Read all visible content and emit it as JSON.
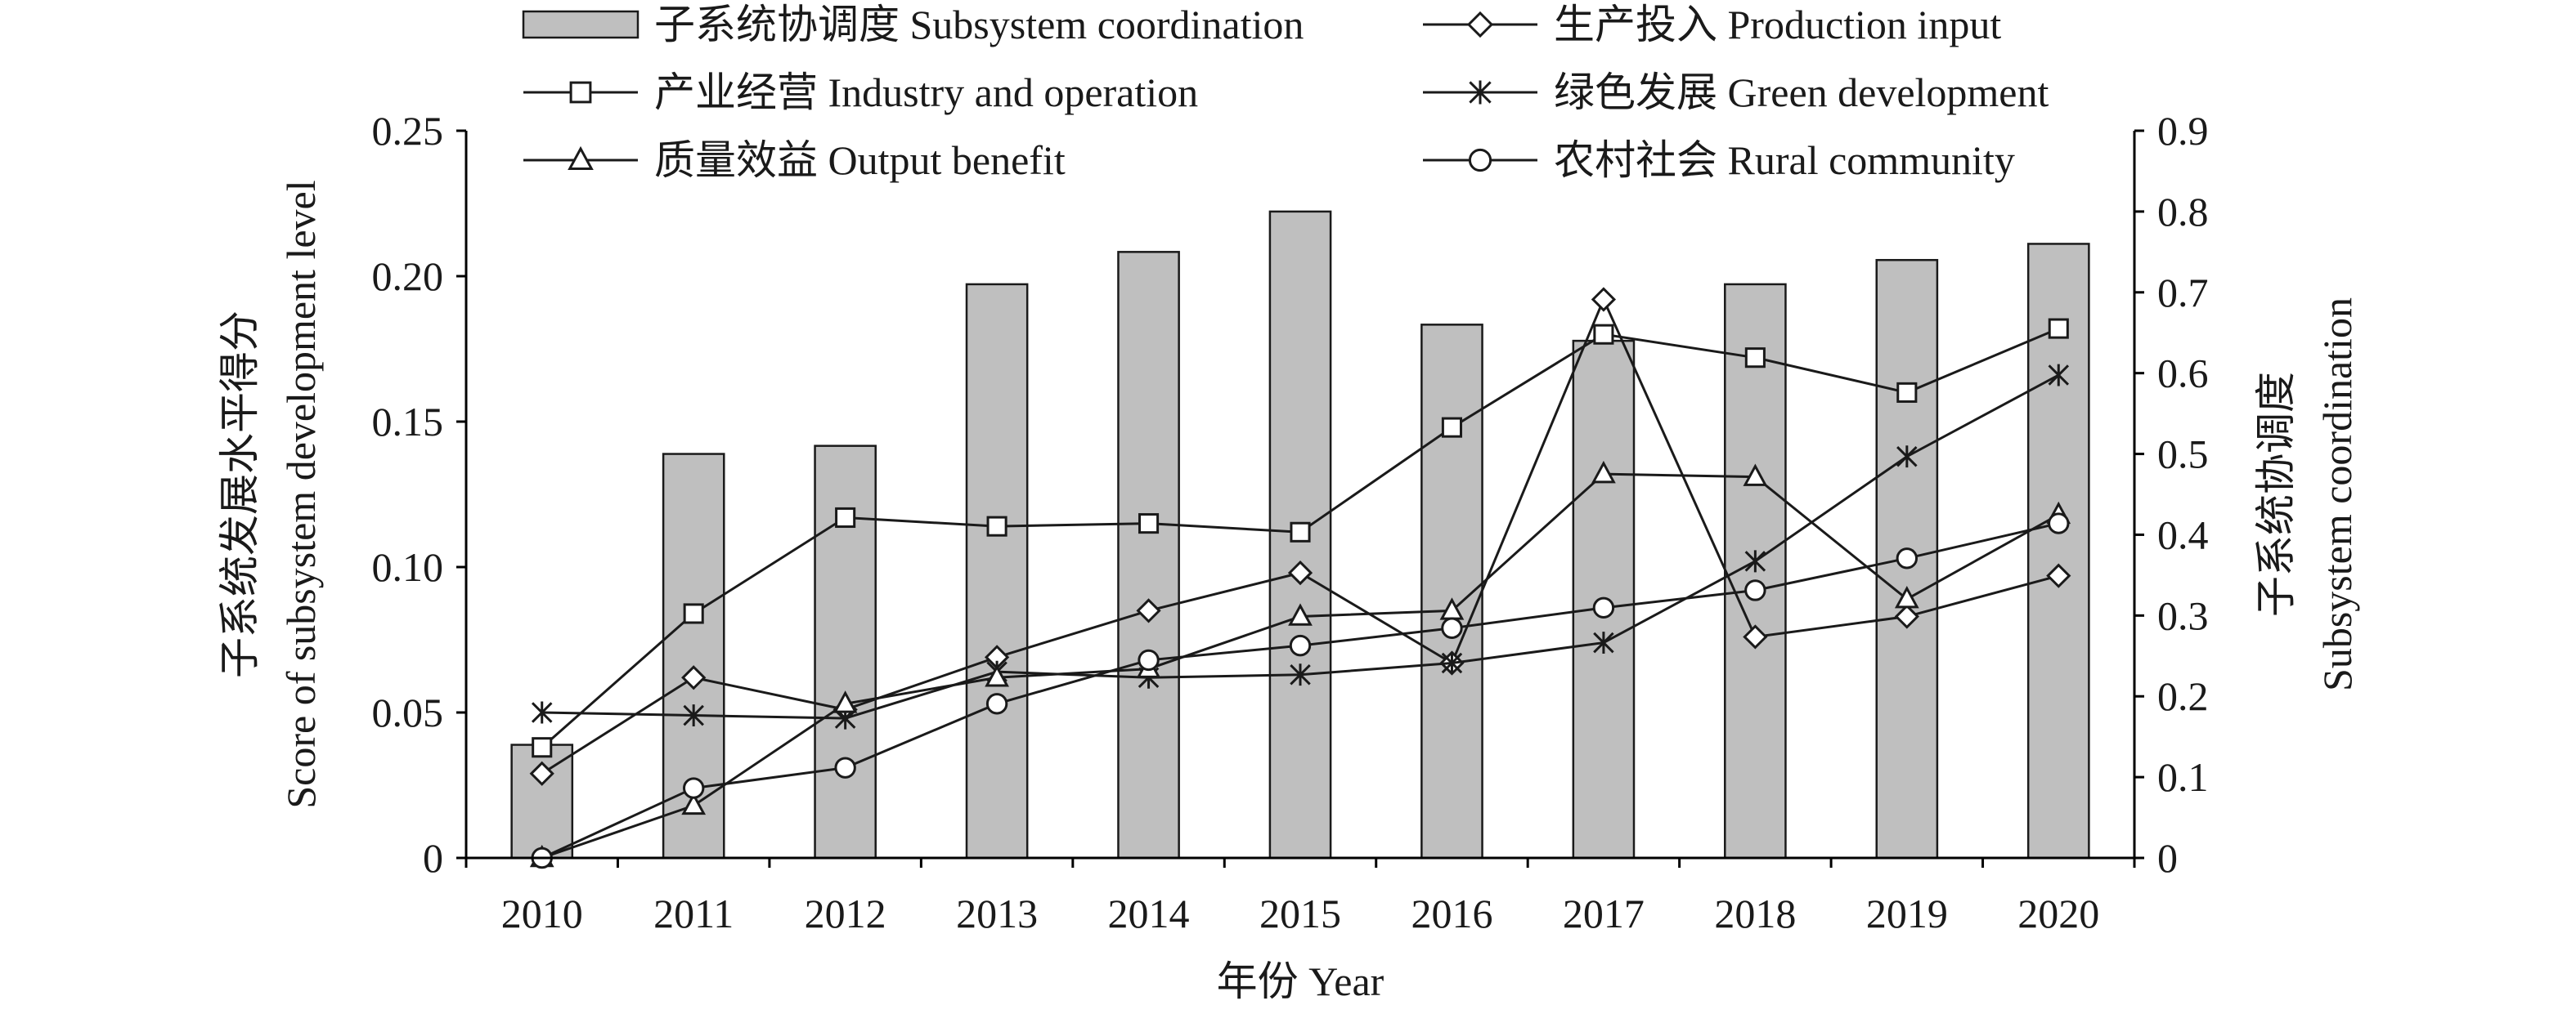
{
  "chart_data": {
    "type": "bar+line",
    "categories": [
      "2010",
      "2011",
      "2012",
      "2013",
      "2014",
      "2015",
      "2016",
      "2017",
      "2018",
      "2019",
      "2020"
    ],
    "bar_series": {
      "name": "子系统协调度 Subsystem coordination",
      "axis": "right",
      "values": [
        0.14,
        0.5,
        0.51,
        0.71,
        0.75,
        0.8,
        0.66,
        0.64,
        0.71,
        0.74,
        0.76
      ]
    },
    "line_series": [
      {
        "name": "生产投入 Production input",
        "marker": "diamond",
        "values": [
          0.029,
          0.062,
          0.051,
          0.069,
          0.085,
          0.098,
          0.067,
          0.192,
          0.076,
          0.083,
          0.097
        ]
      },
      {
        "name": "产业经营 Industry and operation",
        "marker": "square",
        "values": [
          0.038,
          0.084,
          0.117,
          0.114,
          0.115,
          0.112,
          0.148,
          0.18,
          0.172,
          0.16,
          0.182
        ]
      },
      {
        "name": "绿色发展 Green development",
        "marker": "star",
        "values": [
          0.05,
          0.049,
          0.048,
          0.064,
          0.062,
          0.063,
          0.067,
          0.074,
          0.102,
          0.138,
          0.166
        ]
      },
      {
        "name": "质量效益 Output benefit",
        "marker": "triangle",
        "values": [
          0.0,
          0.018,
          0.053,
          0.062,
          0.065,
          0.083,
          0.085,
          0.132,
          0.131,
          0.089,
          0.118
        ]
      },
      {
        "name": "农村社会 Rural community",
        "marker": "circle",
        "values": [
          0.0,
          0.024,
          0.031,
          0.053,
          0.068,
          0.073,
          0.079,
          0.086,
          0.092,
          0.103,
          0.115
        ]
      }
    ],
    "left_axis": {
      "label_cn": "子系统发展水平得分",
      "label_en": "Score of subsystem development level",
      "ylim": [
        0,
        0.25
      ],
      "ticks": [
        "0",
        "0.05",
        "0.10",
        "0.15",
        "0.20",
        "0.25"
      ]
    },
    "right_axis": {
      "label_cn": "子系统协调度",
      "label_en": "Subsystem coordination",
      "ylim": [
        0,
        0.9
      ],
      "ticks": [
        "0",
        "0.1",
        "0.2",
        "0.3",
        "0.4",
        "0.5",
        "0.6",
        "0.7",
        "0.8",
        "0.9"
      ]
    },
    "xlabel": "年份 Year",
    "grid": false,
    "legend_position": "top",
    "colors": {
      "bar_fill": "#bfbfbf",
      "line": "#1a1a1a"
    }
  }
}
